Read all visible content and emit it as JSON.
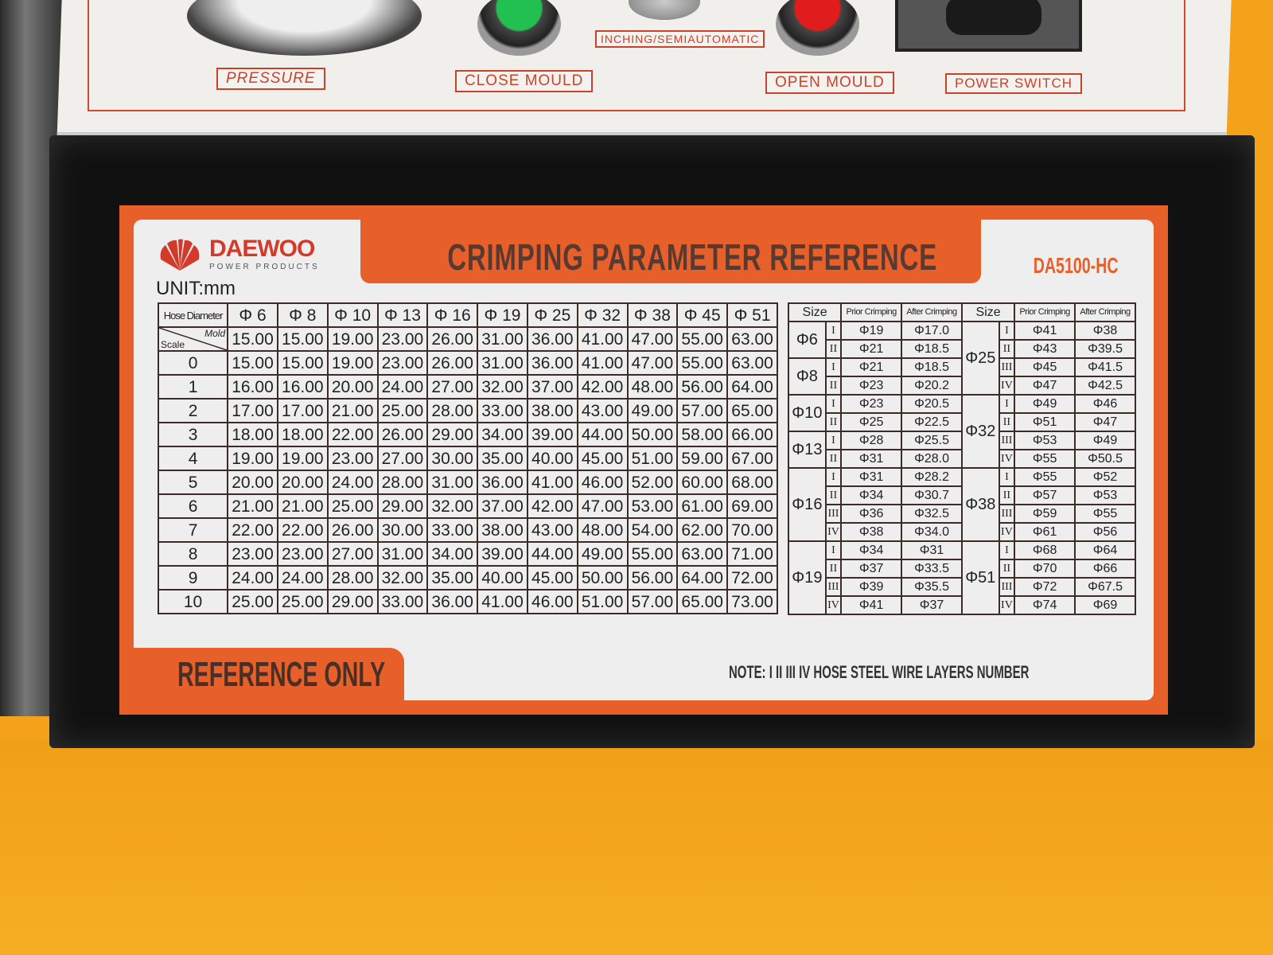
{
  "panel": {
    "labels": [
      "PRESSURE",
      "CLOSE MOULD",
      "INCHING/SEMIAUTOMATIC",
      "OPEN MOULD",
      "POWER SWITCH"
    ]
  },
  "colors": {
    "accent": "#e7602a",
    "panel_red": "#c9432a",
    "box": "#111111",
    "floor": "#f3a21a"
  },
  "label": {
    "brand": "DAEWOO",
    "brand_sub": "POWER PRODUCTS",
    "title": "CRIMPING PARAMETER REFERENCE",
    "model": "DA5100-HC",
    "unit": "UNIT:mm",
    "footer": "REFERENCE ONLY",
    "note": "NOTE:  I  II  III  IV   HOSE STEEL WIRE LAYERS NUMBER"
  },
  "main_table": {
    "header_label": "Hose Diameter",
    "mold_label": "Mold",
    "scale_label": "Scale",
    "columns": [
      "Φ 6",
      "Φ 8",
      "Φ 10",
      "Φ 13",
      "Φ 16",
      "Φ 19",
      "Φ 25",
      "Φ 32",
      "Φ 38",
      "Φ 45",
      "Φ 51"
    ],
    "mold": [
      "15.00",
      "15.00",
      "19.00",
      "23.00",
      "26.00",
      "31.00",
      "36.00",
      "41.00",
      "47.00",
      "55.00",
      "63.00"
    ],
    "rows": [
      {
        "scale": "0",
        "values": [
          "15.00",
          "15.00",
          "19.00",
          "23.00",
          "26.00",
          "31.00",
          "36.00",
          "41.00",
          "47.00",
          "55.00",
          "63.00"
        ]
      },
      {
        "scale": "1",
        "values": [
          "16.00",
          "16.00",
          "20.00",
          "24.00",
          "27.00",
          "32.00",
          "37.00",
          "42.00",
          "48.00",
          "56.00",
          "64.00"
        ]
      },
      {
        "scale": "2",
        "values": [
          "17.00",
          "17.00",
          "21.00",
          "25.00",
          "28.00",
          "33.00",
          "38.00",
          "43.00",
          "49.00",
          "57.00",
          "65.00"
        ]
      },
      {
        "scale": "3",
        "values": [
          "18.00",
          "18.00",
          "22.00",
          "26.00",
          "29.00",
          "34.00",
          "39.00",
          "44.00",
          "50.00",
          "58.00",
          "66.00"
        ]
      },
      {
        "scale": "4",
        "values": [
          "19.00",
          "19.00",
          "23.00",
          "27.00",
          "30.00",
          "35.00",
          "40.00",
          "45.00",
          "51.00",
          "59.00",
          "67.00"
        ]
      },
      {
        "scale": "5",
        "values": [
          "20.00",
          "20.00",
          "24.00",
          "28.00",
          "31.00",
          "36.00",
          "41.00",
          "46.00",
          "52.00",
          "60.00",
          "68.00"
        ]
      },
      {
        "scale": "6",
        "values": [
          "21.00",
          "21.00",
          "25.00",
          "29.00",
          "32.00",
          "37.00",
          "42.00",
          "47.00",
          "53.00",
          "61.00",
          "69.00"
        ]
      },
      {
        "scale": "7",
        "values": [
          "22.00",
          "22.00",
          "26.00",
          "30.00",
          "33.00",
          "38.00",
          "43.00",
          "48.00",
          "54.00",
          "62.00",
          "70.00"
        ]
      },
      {
        "scale": "8",
        "values": [
          "23.00",
          "23.00",
          "27.00",
          "31.00",
          "34.00",
          "39.00",
          "44.00",
          "49.00",
          "55.00",
          "63.00",
          "71.00"
        ]
      },
      {
        "scale": "9",
        "values": [
          "24.00",
          "24.00",
          "28.00",
          "32.00",
          "35.00",
          "40.00",
          "45.00",
          "50.00",
          "56.00",
          "64.00",
          "72.00"
        ]
      },
      {
        "scale": "10",
        "values": [
          "25.00",
          "25.00",
          "29.00",
          "33.00",
          "36.00",
          "41.00",
          "46.00",
          "51.00",
          "57.00",
          "65.00",
          "73.00"
        ]
      }
    ]
  },
  "side_table": {
    "headers": [
      "Size",
      "Prior Crimping",
      "After Crimping",
      "Size",
      "Prior Crimping",
      "After Crimping"
    ],
    "left": [
      {
        "size": "Φ6",
        "rows": [
          [
            "I",
            "Φ19",
            "Φ17.0"
          ],
          [
            "II",
            "Φ21",
            "Φ18.5"
          ]
        ]
      },
      {
        "size": "Φ8",
        "rows": [
          [
            "I",
            "Φ21",
            "Φ18.5"
          ],
          [
            "II",
            "Φ23",
            "Φ20.2"
          ]
        ]
      },
      {
        "size": "Φ10",
        "rows": [
          [
            "I",
            "Φ23",
            "Φ20.5"
          ],
          [
            "II",
            "Φ25",
            "Φ22.5"
          ]
        ]
      },
      {
        "size": "Φ13",
        "rows": [
          [
            "I",
            "Φ28",
            "Φ25.5"
          ],
          [
            "II",
            "Φ31",
            "Φ28.0"
          ]
        ]
      },
      {
        "size": "Φ16",
        "rows": [
          [
            "I",
            "Φ31",
            "Φ28.2"
          ],
          [
            "II",
            "Φ34",
            "Φ30.7"
          ],
          [
            "III",
            "Φ36",
            "Φ32.5"
          ],
          [
            "IV",
            "Φ38",
            "Φ34.0"
          ]
        ]
      },
      {
        "size": "Φ19",
        "rows": [
          [
            "I",
            "Φ34",
            "Φ31"
          ],
          [
            "II",
            "Φ37",
            "Φ33.5"
          ],
          [
            "III",
            "Φ39",
            "Φ35.5"
          ],
          [
            "IV",
            "Φ41",
            "Φ37"
          ]
        ]
      }
    ],
    "right": [
      {
        "size": "Φ25",
        "rows": [
          [
            "I",
            "Φ41",
            "Φ38"
          ],
          [
            "II",
            "Φ43",
            "Φ39.5"
          ],
          [
            "III",
            "Φ45",
            "Φ41.5"
          ],
          [
            "IV",
            "Φ47",
            "Φ42.5"
          ]
        ]
      },
      {
        "size": "Φ32",
        "rows": [
          [
            "I",
            "Φ49",
            "Φ46"
          ],
          [
            "II",
            "Φ51",
            "Φ47"
          ],
          [
            "III",
            "Φ53",
            "Φ49"
          ],
          [
            "IV",
            "Φ55",
            "Φ50.5"
          ]
        ]
      },
      {
        "size": "Φ38",
        "rows": [
          [
            "I",
            "Φ55",
            "Φ52"
          ],
          [
            "II",
            "Φ57",
            "Φ53"
          ],
          [
            "III",
            "Φ59",
            "Φ55"
          ],
          [
            "IV",
            "Φ61",
            "Φ56"
          ]
        ]
      },
      {
        "size": "Φ51",
        "rows": [
          [
            "I",
            "Φ68",
            "Φ64"
          ],
          [
            "II",
            "Φ70",
            "Φ66"
          ],
          [
            "III",
            "Φ72",
            "Φ67.5"
          ],
          [
            "IV",
            "Φ74",
            "Φ69"
          ]
        ]
      }
    ]
  }
}
